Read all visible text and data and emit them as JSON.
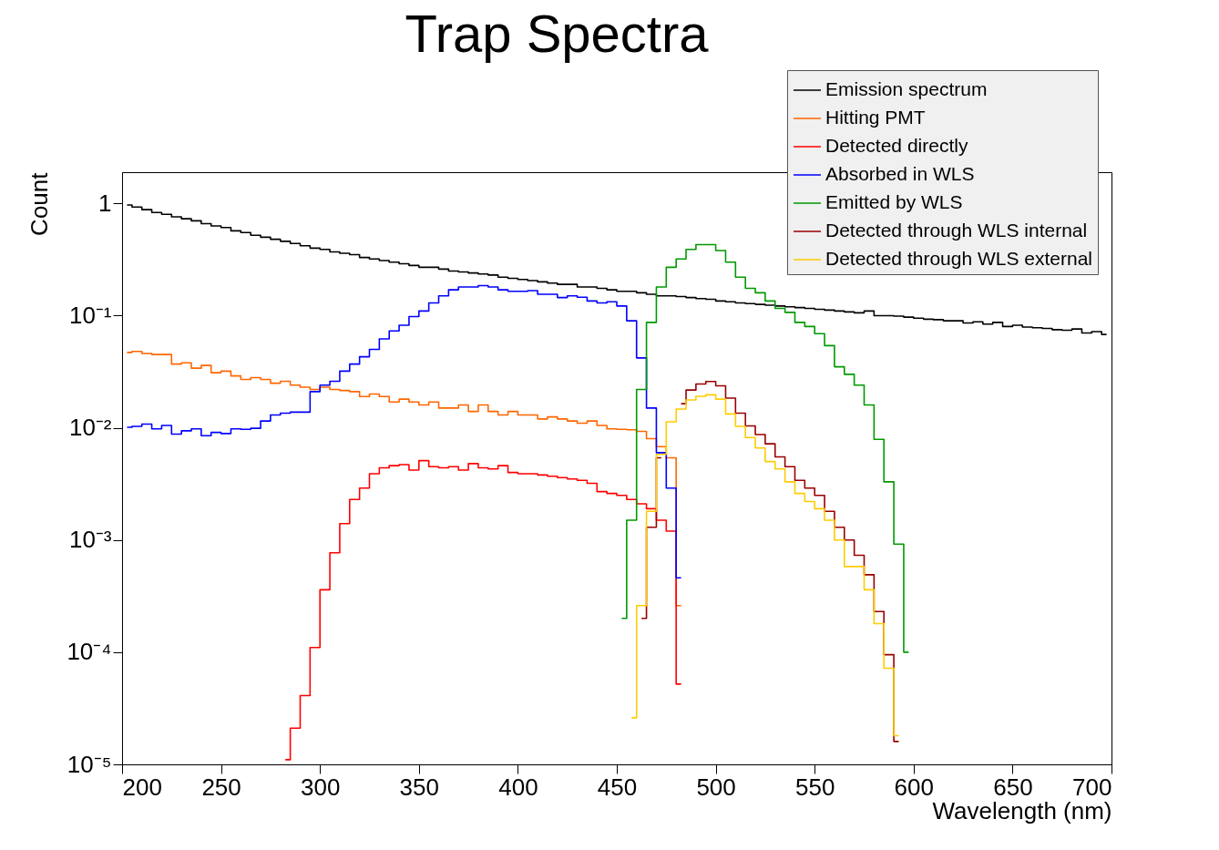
{
  "chart_data": {
    "type": "step",
    "title": "Trap Spectra",
    "xlabel": "Wavelength (nm)",
    "ylabel": "Count",
    "xlim": [
      200,
      700
    ],
    "xticks": [
      200,
      250,
      300,
      350,
      400,
      450,
      500,
      550,
      600,
      650,
      700
    ],
    "ylim": [
      1e-05,
      1.9
    ],
    "log": true,
    "yticks": [
      {
        "value": 1e-05,
        "label": "10⁻⁵"
      },
      {
        "value": 0.0001,
        "label": "10⁻⁴"
      },
      {
        "value": 0.001,
        "label": "10⁻³"
      },
      {
        "value": 0.01,
        "label": "10⁻²"
      },
      {
        "value": 0.1,
        "label": "10⁻¹"
      },
      {
        "value": 1,
        "label": "1"
      }
    ],
    "grid": false,
    "legend": "top right",
    "marker": "none",
    "line_style": "solid",
    "series": [
      {
        "name": "Emission spectrum",
        "color": "#000000",
        "x": [
          202.5,
          207.5,
          212.5,
          217.5,
          222.5,
          227.5,
          232.5,
          237.5,
          242.5,
          247.5,
          252.5,
          257.5,
          262.5,
          267.5,
          272.5,
          277.5,
          282.5,
          287.5,
          292.5,
          297.5,
          302.5,
          307.5,
          312.5,
          317.5,
          322.5,
          327.5,
          332.5,
          337.5,
          342.5,
          347.5,
          352.5,
          357.5,
          362.5,
          367.5,
          372.5,
          377.5,
          382.5,
          387.5,
          392.5,
          397.5,
          402.5,
          407.5,
          412.5,
          417.5,
          422.5,
          427.5,
          432.5,
          437.5,
          442.5,
          447.5,
          452.5,
          457.5,
          462.5,
          467.5,
          472.5,
          477.5,
          482.5,
          487.5,
          492.5,
          497.5,
          502.5,
          507.5,
          512.5,
          517.5,
          522.5,
          527.5,
          532.5,
          537.5,
          542.5,
          547.5,
          552.5,
          557.5,
          562.5,
          567.5,
          572.5,
          577.5,
          582.5,
          587.5,
          592.5,
          597.5,
          602.5,
          607.5,
          612.5,
          617.5,
          622.5,
          627.5,
          632.5,
          637.5,
          642.5,
          647.5,
          652.5,
          657.5,
          662.5,
          667.5,
          672.5,
          677.5,
          682.5,
          687.5,
          692.5,
          697.5
        ],
        "values": [
          0.97,
          0.93,
          0.88,
          0.83,
          0.8,
          0.76,
          0.73,
          0.7,
          0.66,
          0.63,
          0.61,
          0.57,
          0.55,
          0.52,
          0.5,
          0.48,
          0.46,
          0.44,
          0.42,
          0.4,
          0.39,
          0.37,
          0.36,
          0.35,
          0.33,
          0.32,
          0.31,
          0.3,
          0.29,
          0.28,
          0.27,
          0.27,
          0.26,
          0.25,
          0.245,
          0.24,
          0.235,
          0.23,
          0.22,
          0.215,
          0.21,
          0.205,
          0.2,
          0.195,
          0.19,
          0.19,
          0.18,
          0.18,
          0.175,
          0.17,
          0.165,
          0.165,
          0.16,
          0.155,
          0.15,
          0.15,
          0.148,
          0.145,
          0.142,
          0.14,
          0.135,
          0.133,
          0.13,
          0.128,
          0.126,
          0.124,
          0.122,
          0.12,
          0.118,
          0.116,
          0.114,
          0.112,
          0.11,
          0.108,
          0.106,
          0.11,
          0.1,
          0.1,
          0.099,
          0.097,
          0.095,
          0.093,
          0.092,
          0.09,
          0.09,
          0.086,
          0.088,
          0.084,
          0.087,
          0.08,
          0.082,
          0.079,
          0.078,
          0.077,
          0.075,
          0.074,
          0.076,
          0.07,
          0.072,
          0.068
        ]
      },
      {
        "name": "Hitting PMT",
        "color": "#ff6600",
        "x": [
          202.5,
          207.5,
          212.5,
          217.5,
          222.5,
          227.5,
          232.5,
          237.5,
          242.5,
          247.5,
          252.5,
          257.5,
          262.5,
          267.5,
          272.5,
          277.5,
          282.5,
          287.5,
          292.5,
          297.5,
          302.5,
          307.5,
          312.5,
          317.5,
          322.5,
          327.5,
          332.5,
          337.5,
          342.5,
          347.5,
          352.5,
          357.5,
          362.5,
          367.5,
          372.5,
          377.5,
          382.5,
          387.5,
          392.5,
          397.5,
          402.5,
          407.5,
          412.5,
          417.5,
          422.5,
          427.5,
          432.5,
          437.5,
          442.5,
          447.5,
          452.5,
          457.5,
          462.5,
          467.5,
          472.5,
          477.5,
          482.5
        ],
        "values": [
          0.047,
          0.048,
          0.046,
          0.045,
          0.045,
          0.037,
          0.038,
          0.034,
          0.036,
          0.031,
          0.032,
          0.029,
          0.027,
          0.028,
          0.027,
          0.025,
          0.026,
          0.024,
          0.023,
          0.022,
          0.023,
          0.022,
          0.0215,
          0.021,
          0.019,
          0.02,
          0.019,
          0.017,
          0.018,
          0.017,
          0.016,
          0.017,
          0.015,
          0.015,
          0.016,
          0.014,
          0.016,
          0.014,
          0.013,
          0.014,
          0.013,
          0.013,
          0.012,
          0.0125,
          0.012,
          0.0115,
          0.011,
          0.0115,
          0.0105,
          0.0098,
          0.0097,
          0.0096,
          0.0093,
          0.008,
          0.0068,
          0.0054,
          0.00026
        ]
      },
      {
        "name": "Detected directly",
        "color": "#ff0000",
        "x": [
          282.5,
          287.5,
          292.5,
          297.5,
          302.5,
          307.5,
          312.5,
          317.5,
          322.5,
          327.5,
          332.5,
          337.5,
          342.5,
          347.5,
          352.5,
          357.5,
          362.5,
          367.5,
          372.5,
          377.5,
          382.5,
          387.5,
          392.5,
          397.5,
          402.5,
          407.5,
          412.5,
          417.5,
          422.5,
          427.5,
          432.5,
          437.5,
          442.5,
          447.5,
          452.5,
          457.5,
          462.5,
          467.5,
          472.5,
          477.5,
          482.5
        ],
        "values": [
          1.1e-05,
          2.1e-05,
          4.1e-05,
          0.00011,
          0.00036,
          0.00077,
          0.0014,
          0.0023,
          0.0029,
          0.0039,
          0.0044,
          0.0046,
          0.0047,
          0.0042,
          0.0051,
          0.0045,
          0.0044,
          0.0045,
          0.0042,
          0.0048,
          0.0044,
          0.0043,
          0.0046,
          0.004,
          0.0039,
          0.0039,
          0.0038,
          0.0037,
          0.0036,
          0.0035,
          0.0034,
          0.0032,
          0.0027,
          0.0026,
          0.0025,
          0.0023,
          0.0021,
          0.0019,
          0.0015,
          0.0012,
          5.2e-05
        ]
      },
      {
        "name": "Absorbed in WLS",
        "color": "#0000ff",
        "x": [
          202.5,
          207.5,
          212.5,
          217.5,
          222.5,
          227.5,
          232.5,
          237.5,
          242.5,
          247.5,
          252.5,
          257.5,
          262.5,
          267.5,
          272.5,
          277.5,
          282.5,
          287.5,
          292.5,
          297.5,
          302.5,
          307.5,
          312.5,
          317.5,
          322.5,
          327.5,
          332.5,
          337.5,
          342.5,
          347.5,
          352.5,
          357.5,
          362.5,
          367.5,
          372.5,
          377.5,
          382.5,
          387.5,
          392.5,
          397.5,
          402.5,
          407.5,
          412.5,
          417.5,
          422.5,
          427.5,
          432.5,
          437.5,
          442.5,
          447.5,
          452.5,
          457.5,
          462.5,
          467.5,
          472.5,
          477.5,
          482.5
        ],
        "values": [
          0.0101,
          0.0103,
          0.0108,
          0.0098,
          0.0105,
          0.0088,
          0.0094,
          0.0098,
          0.0085,
          0.0091,
          0.0089,
          0.0098,
          0.0097,
          0.0099,
          0.0115,
          0.013,
          0.0135,
          0.0138,
          0.0138,
          0.021,
          0.024,
          0.026,
          0.032,
          0.037,
          0.043,
          0.05,
          0.062,
          0.073,
          0.082,
          0.098,
          0.11,
          0.13,
          0.15,
          0.17,
          0.18,
          0.18,
          0.185,
          0.18,
          0.17,
          0.165,
          0.165,
          0.167,
          0.155,
          0.155,
          0.145,
          0.15,
          0.146,
          0.135,
          0.13,
          0.133,
          0.122,
          0.09,
          0.042,
          0.015,
          0.006,
          0.0029,
          0.00046
        ]
      },
      {
        "name": "Emitted by WLS",
        "color": "#009900",
        "x": [
          452.5,
          457.5,
          462.5,
          467.5,
          472.5,
          477.5,
          482.5,
          487.5,
          492.5,
          497.5,
          502.5,
          507.5,
          512.5,
          517.5,
          522.5,
          527.5,
          532.5,
          537.5,
          542.5,
          547.5,
          552.5,
          557.5,
          562.5,
          567.5,
          572.5,
          577.5,
          582.5,
          587.5,
          592.5,
          597.5
        ],
        "values": [
          0.0002,
          0.0015,
          0.022,
          0.087,
          0.18,
          0.27,
          0.32,
          0.39,
          0.43,
          0.43,
          0.38,
          0.3,
          0.22,
          0.175,
          0.16,
          0.135,
          0.116,
          0.107,
          0.087,
          0.08,
          0.069,
          0.054,
          0.035,
          0.03,
          0.024,
          0.016,
          0.0079,
          0.0033,
          0.00092,
          0.0001
        ]
      },
      {
        "name": "Detected through WLS internal",
        "color": "#990000",
        "x": [
          462.5,
          467.5,
          472.5,
          477.5,
          482.5,
          487.5,
          492.5,
          497.5,
          502.5,
          507.5,
          512.5,
          517.5,
          522.5,
          527.5,
          532.5,
          537.5,
          542.5,
          547.5,
          552.5,
          557.5,
          562.5,
          567.5,
          572.5,
          577.5,
          582.5,
          587.5,
          592.5
        ],
        "values": [
          0.0002,
          0.0013,
          0.0054,
          null,
          0.0164,
          0.0217,
          0.0246,
          0.0259,
          0.0237,
          0.0184,
          0.0135,
          0.0104,
          0.0087,
          0.0072,
          0.0055,
          0.0045,
          0.0034,
          0.0029,
          0.0025,
          0.0018,
          0.0013,
          0.001,
          0.00073,
          0.00049,
          0.00023,
          9.5e-05,
          1.6e-05
        ]
      },
      {
        "name": "Detected through WLS external",
        "color": "#ffcc00",
        "x": [
          457.5,
          462.5,
          467.5,
          472.5,
          477.5,
          482.5,
          487.5,
          492.5,
          497.5,
          502.5,
          507.5,
          512.5,
          517.5,
          522.5,
          527.5,
          532.5,
          537.5,
          542.5,
          547.5,
          552.5,
          557.5,
          562.5,
          567.5,
          572.5,
          577.5,
          582.5,
          587.5,
          592.5
        ],
        "values": [
          2.6e-05,
          0.00026,
          0.0018,
          0.0058,
          0.0113,
          0.0147,
          0.0177,
          0.0191,
          0.0197,
          0.018,
          0.0133,
          0.0103,
          0.0082,
          0.0066,
          0.005,
          0.0043,
          0.0033,
          0.0026,
          0.0022,
          0.0019,
          0.0015,
          0.001,
          0.00058,
          0.00058,
          0.00036,
          0.00018,
          7.2e-05,
          1.8e-05
        ]
      }
    ]
  }
}
